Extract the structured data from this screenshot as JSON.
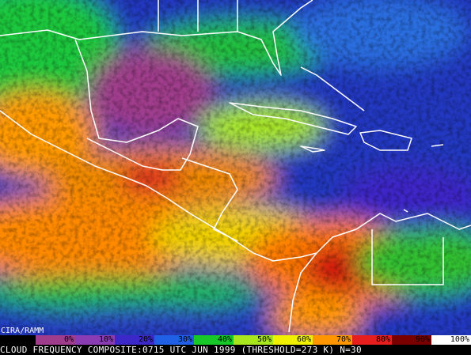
{
  "credit": "CIRA/RAMM",
  "legend": {
    "items": [
      {
        "label": "0%",
        "color": "#a03c8c"
      },
      {
        "label": "10%",
        "color": "#8a3cb4"
      },
      {
        "label": "20%",
        "color": "#3c28c8"
      },
      {
        "label": "30%",
        "color": "#2060e6"
      },
      {
        "label": "40%",
        "color": "#18c828"
      },
      {
        "label": "50%",
        "color": "#a8e61e"
      },
      {
        "label": "60%",
        "color": "#f0f000"
      },
      {
        "label": "70%",
        "color": "#ff9600"
      },
      {
        "label": "80%",
        "color": "#e61e1e"
      },
      {
        "label": "90%",
        "color": "#7a0000"
      },
      {
        "label": "100%",
        "color": "#ffffff"
      }
    ]
  },
  "caption": "CLOUD FREQUENCY COMPOSITE:0715 UTC JUN 1999 (THRESHOLD=273 K) N=30"
}
